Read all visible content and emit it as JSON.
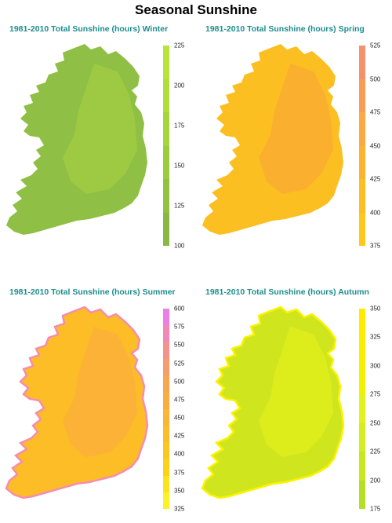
{
  "title": "Seasonal Sunshine",
  "panels": [
    {
      "id": "winter",
      "title": "1981-2010 Total Sunshine (hours)  Winter",
      "ticks": [
        "225",
        "200",
        "175",
        "150",
        "125",
        "100"
      ],
      "colors": [
        "#b7e33a",
        "#b0dd39",
        "#a6d43a",
        "#9ccb3d",
        "#93c140",
        "#8ab843"
      ],
      "map_base": "#8fbf45",
      "map_overlay": "#a9d440"
    },
    {
      "id": "spring",
      "title": "1981-2010 Total Sunshine (hours)  Spring",
      "ticks": [
        "525",
        "500",
        "475",
        "450",
        "425",
        "400",
        "375"
      ],
      "colors": [
        "#f5926e",
        "#f99d55",
        "#fba940",
        "#fcb430",
        "#fcbe22",
        "#fdc81a"
      ],
      "map_base": "#fcbf22",
      "map_overlay": "#f9a33a"
    },
    {
      "id": "summer",
      "title": "1981-2010 Total Sunshine (hours)  Summer",
      "ticks": [
        "600",
        "575",
        "550",
        "525",
        "500",
        "475",
        "450",
        "425",
        "400",
        "375",
        "350",
        "325"
      ],
      "colors": [
        "#ec7fe6",
        "#f387b8",
        "#f6928c",
        "#f89c6a",
        "#faa64f",
        "#fbad40",
        "#fcb534",
        "#fcbd28",
        "#fdc61e",
        "#fdd11a",
        "#fde31e",
        "#fdf22a"
      ],
      "map_base": "#fcbd26",
      "map_overlay": "#fba946",
      "map_edge": "#f58db0"
    },
    {
      "id": "autumn",
      "title": "1981-2010 Total Sunshine (hours)  Autumn",
      "ticks": [
        "350",
        "325",
        "300",
        "275",
        "250",
        "225",
        "200",
        "175"
      ],
      "colors": [
        "#ffea00",
        "#f9ee00",
        "#f1f200",
        "#e1f21c",
        "#d4ee22",
        "#c7e81f",
        "#b6de25"
      ],
      "map_base": "#cfe61e",
      "map_overlay": "#e9f21b",
      "map_edge": "#fbf200"
    }
  ]
}
